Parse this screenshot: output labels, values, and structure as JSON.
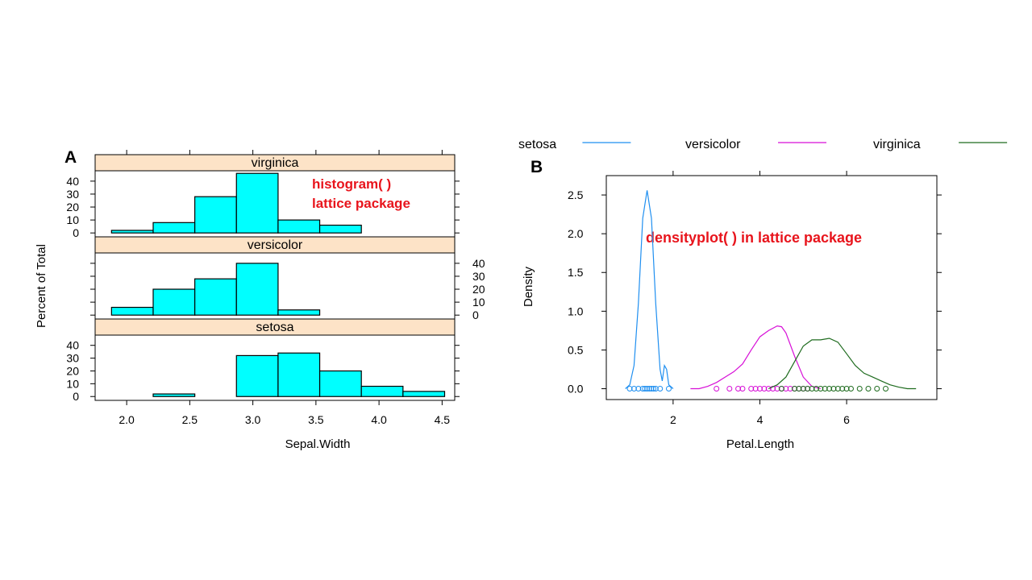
{
  "panel_a": {
    "letter": "A",
    "annotation_line1": "histogram( )",
    "annotation_line2": "lattice package",
    "annotation_color": "#e8141c",
    "strip_color": "#fde3c7",
    "bar_color": "#00ffff",
    "xlabel": "Sepal.Width",
    "ylabel": "Percent of Total"
  },
  "panel_b": {
    "letter": "B",
    "annotation": "densityplot( ) in lattice package",
    "annotation_color": "#e8141c",
    "xlabel": "Petal.Length",
    "ylabel": "Density"
  },
  "chart_data": [
    {
      "type": "bar",
      "subtype": "histogram",
      "x_tick_labels": [
        "2.0",
        "2.5",
        "3.0",
        "3.5",
        "4.0",
        "4.5"
      ],
      "x_ticks": [
        2.0,
        2.5,
        3.0,
        3.5,
        4.0,
        4.5
      ],
      "xlim": [
        1.75,
        4.6
      ],
      "ylim": [
        -3,
        48
      ],
      "y_ticks": [
        0,
        10,
        20,
        30,
        40
      ],
      "y_tick_labels": [
        "0",
        "10",
        "20",
        "30",
        "40"
      ],
      "bin_edges": [
        1.88,
        2.21,
        2.54,
        2.87,
        3.2,
        3.53,
        3.86,
        4.19,
        4.52
      ],
      "panels": [
        {
          "strip": "virginica",
          "values": [
            2,
            8,
            28,
            46,
            10,
            6,
            0,
            0
          ]
        },
        {
          "strip": "versicolor",
          "values": [
            6,
            20,
            28,
            40,
            4,
            0,
            0,
            0
          ]
        },
        {
          "strip": "setosa",
          "values": [
            0,
            2,
            0,
            32,
            34,
            20,
            8,
            4
          ]
        }
      ]
    },
    {
      "type": "line",
      "subtype": "density",
      "x_ticks": [
        2,
        4,
        6
      ],
      "x_tick_labels": [
        "2",
        "4",
        "6"
      ],
      "xlim": [
        0.46,
        8.08
      ],
      "ylim": [
        -0.14,
        2.75
      ],
      "y_ticks": [
        0.0,
        0.5,
        1.0,
        1.5,
        2.0,
        2.5
      ],
      "y_tick_labels": [
        "0.0",
        "0.5",
        "1.0",
        "1.5",
        "2.0",
        "2.5"
      ],
      "legend_position": "top",
      "series": [
        {
          "name": "setosa",
          "color": "#1f8ff0",
          "x": [
            0.9,
            1.0,
            1.1,
            1.2,
            1.3,
            1.4,
            1.5,
            1.6,
            1.7,
            1.75,
            1.8,
            1.85,
            1.9,
            2.0
          ],
          "y": [
            0.0,
            0.05,
            0.3,
            1.1,
            2.2,
            2.56,
            2.2,
            1.1,
            0.25,
            0.1,
            0.3,
            0.25,
            0.05,
            0.0
          ],
          "rug": [
            1.0,
            1.1,
            1.2,
            1.3,
            1.35,
            1.4,
            1.45,
            1.5,
            1.55,
            1.6,
            1.7,
            1.9
          ]
        },
        {
          "name": "versicolor",
          "color": "#d70fd7",
          "x": [
            2.4,
            2.6,
            2.8,
            3.0,
            3.2,
            3.4,
            3.6,
            3.8,
            4.0,
            4.2,
            4.4,
            4.5,
            4.6,
            4.8,
            5.0,
            5.2,
            5.4
          ],
          "y": [
            0.0,
            0.0,
            0.03,
            0.08,
            0.15,
            0.22,
            0.32,
            0.5,
            0.67,
            0.75,
            0.81,
            0.8,
            0.72,
            0.42,
            0.15,
            0.03,
            0.0
          ],
          "rug": [
            3.0,
            3.3,
            3.5,
            3.6,
            3.8,
            3.9,
            4.0,
            4.1,
            4.2,
            4.3,
            4.4,
            4.5,
            4.6,
            4.7,
            4.8,
            4.9,
            5.0,
            5.1
          ]
        },
        {
          "name": "virginica",
          "color": "#1e6b1e",
          "x": [
            4.2,
            4.4,
            4.6,
            4.8,
            5.0,
            5.2,
            5.4,
            5.6,
            5.8,
            6.0,
            6.2,
            6.4,
            6.6,
            6.8,
            7.0,
            7.2,
            7.4,
            7.6
          ],
          "y": [
            0.0,
            0.05,
            0.15,
            0.35,
            0.55,
            0.63,
            0.63,
            0.65,
            0.6,
            0.45,
            0.3,
            0.2,
            0.15,
            0.1,
            0.05,
            0.02,
            0.0,
            0.0
          ],
          "rug": [
            4.5,
            4.8,
            4.9,
            5.0,
            5.1,
            5.2,
            5.3,
            5.4,
            5.5,
            5.6,
            5.7,
            5.8,
            5.9,
            6.0,
            6.1,
            6.3,
            6.5,
            6.7,
            6.9
          ]
        }
      ]
    }
  ]
}
